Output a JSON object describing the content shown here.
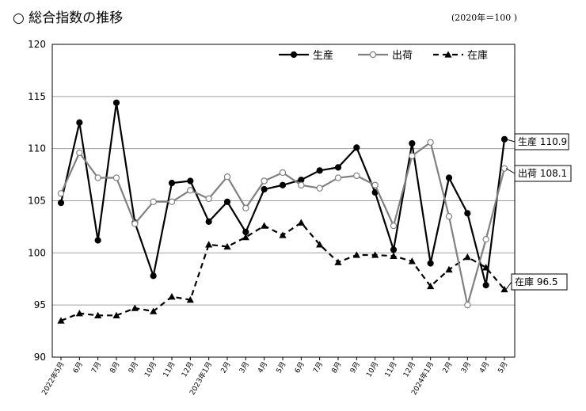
{
  "title": "○ 総合指数の推移",
  "unit_note": "(2020年＝100 )",
  "chart_data": {
    "type": "line",
    "title": "総合指数の推移",
    "ylim": [
      90,
      120
    ],
    "yticks": [
      90,
      95,
      100,
      105,
      110,
      115,
      120
    ],
    "grid": true,
    "legend_position": "top-right",
    "categories": [
      "2022年5月",
      "6月",
      "7月",
      "8月",
      "9月",
      "10月",
      "11月",
      "12月",
      "2023年1月",
      "2月",
      "3月",
      "4月",
      "5月",
      "6月",
      "7月",
      "8月",
      "9月",
      "10月",
      "11月",
      "12月",
      "2024年1月",
      "2月",
      "3月",
      "4月",
      "5月"
    ],
    "series": [
      {
        "name": "生産",
        "color": "#000000",
        "style": "solid",
        "marker": "filled-circle",
        "values": [
          104.8,
          112.5,
          101.2,
          114.4,
          102.9,
          97.8,
          106.7,
          106.9,
          103.0,
          104.9,
          102.0,
          106.1,
          106.5,
          107.0,
          107.9,
          108.2,
          110.1,
          105.8,
          100.3,
          110.5,
          99.0,
          107.2,
          103.8,
          96.9,
          110.9
        ]
      },
      {
        "name": "出荷",
        "color": "#808080",
        "style": "solid",
        "marker": "open-circle",
        "values": [
          105.7,
          109.6,
          107.2,
          107.2,
          102.8,
          104.9,
          104.9,
          106.0,
          105.2,
          107.3,
          104.3,
          106.9,
          107.7,
          106.5,
          106.2,
          107.2,
          107.4,
          106.5,
          102.6,
          109.3,
          110.6,
          103.5,
          95.0,
          101.3,
          108.1
        ]
      },
      {
        "name": "在庫",
        "color": "#000000",
        "style": "dashed",
        "marker": "filled-triangle",
        "values": [
          93.5,
          94.2,
          94.0,
          94.0,
          94.7,
          94.4,
          95.8,
          95.5,
          100.8,
          100.6,
          101.5,
          102.6,
          101.7,
          102.9,
          100.8,
          99.1,
          99.8,
          99.8,
          99.7,
          99.2,
          96.8,
          98.4,
          99.6,
          98.6,
          96.5
        ]
      }
    ],
    "annotations": [
      {
        "label": "生産 110.9",
        "series": "生産"
      },
      {
        "label": "出荷 108.1",
        "series": "出荷"
      },
      {
        "label": "在庫 96.5",
        "series": "在庫"
      }
    ]
  }
}
